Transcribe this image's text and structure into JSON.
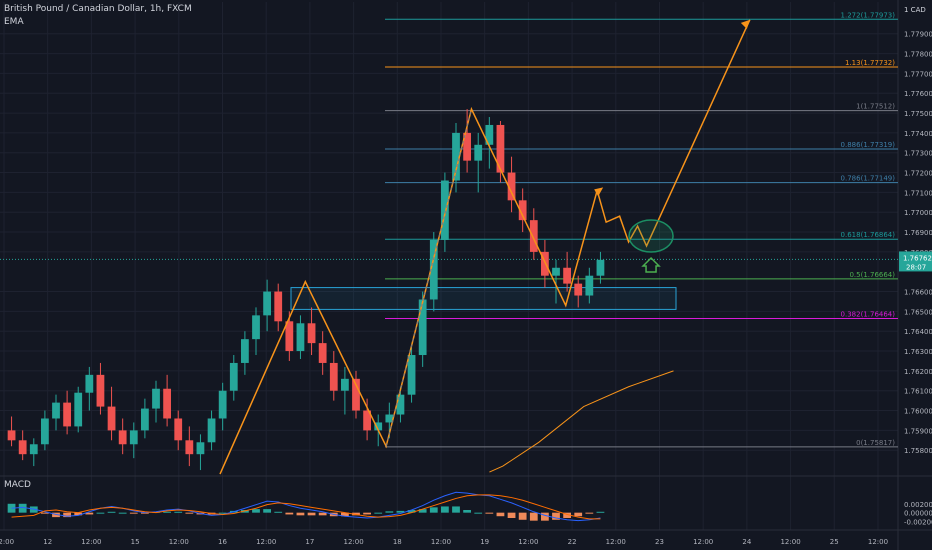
{
  "header": {
    "symbol_line": "British Pound / Canadian Dollar, 1h, FXCM",
    "indicator": "EMA"
  },
  "macd_panel": {
    "label": "MACD",
    "scale": [
      "0.00200",
      "0.00000",
      "-0.00200"
    ]
  },
  "colors": {
    "background": "#131722",
    "grid": "#1e2230",
    "up": "#26a69a",
    "down": "#ef5350",
    "ema": "#f7931a",
    "pattern": "#f7931a",
    "zone": "#29a3d6",
    "fib_level": "#3e7fa8",
    "fib_161": "#f7931a",
    "fib_0382": "#d81bd8",
    "fib_05": "#4caf50",
    "target": "#1c8f64"
  },
  "chart_data": {
    "type": "candlestick",
    "y_axis": {
      "unit_label": "1 CAD",
      "ticks": [
        "1.77900",
        "1.77800",
        "1.77700",
        "1.77600",
        "1.77500",
        "1.77400",
        "1.77300",
        "1.77200",
        "1.77100",
        "1.77000",
        "1.76900",
        "1.76800",
        "1.76600",
        "1.76500",
        "1.76400",
        "1.76300",
        "1.76200",
        "1.76100",
        "1.76000",
        "1.75900",
        "1.75800"
      ],
      "ylim": [
        1.7567,
        1.7806
      ]
    },
    "x_axis": {
      "ticks": [
        "12:00",
        "12",
        "12:00",
        "15",
        "12:00",
        "16",
        "12:00",
        "17",
        "12:00",
        "18",
        "12:00",
        "19",
        "12:00",
        "22",
        "12:00",
        "23",
        "12:00",
        "24",
        "12:00",
        "25",
        "12:00"
      ]
    },
    "price_labels": [
      {
        "text": "1.76762",
        "value": 1.76762,
        "color": "#26a69a"
      },
      {
        "text": "28:07",
        "color": "#26a69a"
      }
    ],
    "fib_levels": [
      {
        "label": "1.272(1.77973)",
        "value": 1.77973,
        "color": "#1c9a9a"
      },
      {
        "label": "1.13(1.77732)",
        "value": 1.77732,
        "color": "#f7931a"
      },
      {
        "label": "1(1.77512)",
        "value": 1.77512,
        "color": "#787b86"
      },
      {
        "label": "0.886(1.77319)",
        "value": 1.77319,
        "color": "#3e7fa8"
      },
      {
        "label": "0.786(1.77149)",
        "value": 1.77149,
        "color": "#3e7fa8"
      },
      {
        "label": "0.618(1.76864)",
        "value": 1.76864,
        "color": "#1c9a9a"
      },
      {
        "label": "0.5(1.76664)",
        "value": 1.76664,
        "color": "#4caf50"
      },
      {
        "label": "0.382(1.76464)",
        "value": 1.76464,
        "color": "#d81bd8"
      },
      {
        "label": "0(1.75817)",
        "value": 1.75817,
        "color": "#787b86"
      }
    ],
    "zone": {
      "from": 1.7651,
      "to": 1.7662
    },
    "ema": [
      [
        0.545,
        1.7569
      ],
      [
        0.56,
        1.7572
      ],
      [
        0.6,
        1.7584
      ],
      [
        0.65,
        1.7602
      ],
      [
        0.7,
        1.7612
      ],
      [
        0.75,
        1.762
      ]
    ],
    "pattern_path": [
      [
        0.245,
        1.7568
      ],
      [
        0.34,
        1.7665
      ],
      [
        0.43,
        1.7582
      ],
      [
        0.525,
        1.7752
      ],
      [
        0.63,
        1.7653
      ],
      [
        0.665,
        1.7711
      ]
    ],
    "forecast_path": [
      [
        0.665,
        1.7711
      ],
      [
        0.675,
        1.7695
      ],
      [
        0.69,
        1.7698
      ],
      [
        0.7,
        1.7685
      ],
      [
        0.71,
        1.7693
      ],
      [
        0.72,
        1.7683
      ],
      [
        0.835,
        1.7797
      ]
    ],
    "candles": [
      [
        1.759,
        1.7597,
        1.7582,
        1.7585
      ],
      [
        1.7585,
        1.759,
        1.7575,
        1.7578
      ],
      [
        1.7578,
        1.7586,
        1.7572,
        1.7583
      ],
      [
        1.7583,
        1.76,
        1.758,
        1.7596
      ],
      [
        1.7596,
        1.7608,
        1.759,
        1.7604
      ],
      [
        1.7604,
        1.761,
        1.7588,
        1.7592
      ],
      [
        1.7592,
        1.7612,
        1.7589,
        1.7609
      ],
      [
        1.7609,
        1.7622,
        1.76,
        1.7618
      ],
      [
        1.7618,
        1.7624,
        1.7598,
        1.7602
      ],
      [
        1.7602,
        1.7612,
        1.7585,
        1.759
      ],
      [
        1.759,
        1.7596,
        1.7578,
        1.7583
      ],
      [
        1.7583,
        1.7594,
        1.7576,
        1.759
      ],
      [
        1.759,
        1.7606,
        1.7586,
        1.7601
      ],
      [
        1.7601,
        1.7615,
        1.7594,
        1.7611
      ],
      [
        1.7611,
        1.7618,
        1.7592,
        1.7596
      ],
      [
        1.7596,
        1.76,
        1.758,
        1.7585
      ],
      [
        1.7585,
        1.7592,
        1.7572,
        1.7578
      ],
      [
        1.7578,
        1.7588,
        1.757,
        1.7584
      ],
      [
        1.7584,
        1.76,
        1.758,
        1.7596
      ],
      [
        1.7596,
        1.7614,
        1.759,
        1.761
      ],
      [
        1.761,
        1.7628,
        1.7605,
        1.7624
      ],
      [
        1.7624,
        1.764,
        1.7618,
        1.7636
      ],
      [
        1.7636,
        1.7652,
        1.7628,
        1.7648
      ],
      [
        1.7648,
        1.7666,
        1.764,
        1.766
      ],
      [
        1.766,
        1.7664,
        1.764,
        1.7645
      ],
      [
        1.7645,
        1.765,
        1.7625,
        1.763
      ],
      [
        1.763,
        1.7648,
        1.7626,
        1.7644
      ],
      [
        1.7644,
        1.7652,
        1.7628,
        1.7634
      ],
      [
        1.7634,
        1.764,
        1.7618,
        1.7624
      ],
      [
        1.7624,
        1.763,
        1.7605,
        1.761
      ],
      [
        1.761,
        1.7622,
        1.7598,
        1.7616
      ],
      [
        1.7616,
        1.762,
        1.7596,
        1.76
      ],
      [
        1.76,
        1.7606,
        1.7585,
        1.759
      ],
      [
        1.759,
        1.7598,
        1.7582,
        1.7594
      ],
      [
        1.7594,
        1.7604,
        1.7586,
        1.7598
      ],
      [
        1.7598,
        1.7612,
        1.7594,
        1.7608
      ],
      [
        1.7608,
        1.7632,
        1.7604,
        1.7628
      ],
      [
        1.7628,
        1.766,
        1.7622,
        1.7656
      ],
      [
        1.7656,
        1.769,
        1.765,
        1.7686
      ],
      [
        1.7686,
        1.772,
        1.768,
        1.7716
      ],
      [
        1.7716,
        1.7745,
        1.771,
        1.774
      ],
      [
        1.774,
        1.7752,
        1.772,
        1.7726
      ],
      [
        1.7726,
        1.774,
        1.771,
        1.7734
      ],
      [
        1.7734,
        1.7748,
        1.7722,
        1.7744
      ],
      [
        1.7744,
        1.7746,
        1.7715,
        1.772
      ],
      [
        1.772,
        1.7728,
        1.77,
        1.7706
      ],
      [
        1.7706,
        1.7712,
        1.769,
        1.7696
      ],
      [
        1.7696,
        1.7702,
        1.7676,
        1.768
      ],
      [
        1.768,
        1.7686,
        1.7662,
        1.7668
      ],
      [
        1.7668,
        1.7676,
        1.7654,
        1.7672
      ],
      [
        1.7672,
        1.768,
        1.766,
        1.7664
      ],
      [
        1.7664,
        1.7668,
        1.7652,
        1.7658
      ],
      [
        1.7658,
        1.7672,
        1.7654,
        1.7668
      ],
      [
        1.7668,
        1.768,
        1.7664,
        1.7676
      ]
    ],
    "macd": [
      [
        0.0001,
        -0.0001
      ],
      [
        0.00012,
        -8e-05
      ],
      [
        8e-05,
        -6e-05
      ],
      [
        2e-05,
        4e-05
      ],
      [
        -4e-05,
        6e-05
      ],
      [
        -8e-05,
        2e-05
      ],
      [
        -6e-05,
        0.0
      ],
      [
        2e-05,
        6e-05
      ],
      [
        0.0001,
        0.0001
      ],
      [
        0.00014,
        0.00012
      ],
      [
        0.0001,
        0.0001
      ],
      [
        4e-05,
        6e-05
      ],
      [
        0.0,
        2e-05
      ],
      [
        2e-05,
        0.0
      ],
      [
        6e-05,
        4e-05
      ],
      [
        8e-05,
        6e-05
      ],
      [
        4e-05,
        5e-05
      ],
      [
        -2e-05,
        2e-05
      ],
      [
        -6e-05,
        -2e-05
      ],
      [
        -4e-05,
        -4e-05
      ],
      [
        2e-05,
        -2e-05
      ],
      [
        0.0001,
        4e-05
      ],
      [
        0.00018,
        0.0001
      ],
      [
        0.00026,
        0.00018
      ],
      [
        0.00024,
        0.00022
      ],
      [
        0.00016,
        0.0002
      ],
      [
        0.0001,
        0.00016
      ],
      [
        6e-05,
        0.00012
      ],
      [
        2e-05,
        8e-05
      ],
      [
        -4e-05,
        4e-05
      ],
      [
        -8e-05,
        0.0
      ],
      [
        -0.0001,
        -4e-05
      ],
      [
        -0.00012,
        -8e-05
      ],
      [
        -0.0001,
        -0.0001
      ],
      [
        -6e-05,
        -9e-05
      ],
      [
        -2e-05,
        -6e-05
      ],
      [
        6e-05,
        0.0
      ],
      [
        0.00016,
        8e-05
      ],
      [
        0.00028,
        0.00016
      ],
      [
        0.00038,
        0.00024
      ],
      [
        0.00046,
        0.00032
      ],
      [
        0.00044,
        0.00038
      ],
      [
        0.0004,
        0.0004
      ],
      [
        0.00038,
        0.0004
      ],
      [
        0.0003,
        0.00038
      ],
      [
        0.00022,
        0.00034
      ],
      [
        0.00012,
        0.00028
      ],
      [
        2e-05,
        0.0002
      ],
      [
        -6e-05,
        0.00012
      ],
      [
        -0.00012,
        4e-05
      ],
      [
        -0.00016,
        -4e-05
      ],
      [
        -0.00018,
        -0.0001
      ],
      [
        -0.00016,
        -0.00014
      ],
      [
        -0.00012,
        -0.00014
      ]
    ]
  }
}
